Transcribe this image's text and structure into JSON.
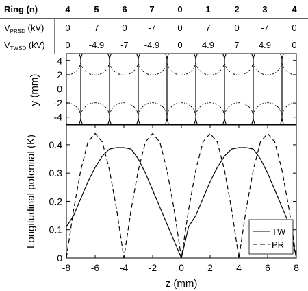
{
  "table": {
    "header_label": "Ring (n)",
    "rings": [
      "4",
      "5",
      "6",
      "7",
      "0",
      "1",
      "2",
      "3",
      "4"
    ],
    "rows": [
      {
        "label_main": "V",
        "label_sub": "PRSD",
        "label_unit": " (kV)",
        "values": [
          "0",
          "7",
          "0",
          "-7",
          "0",
          "7",
          "0",
          "-7",
          "0"
        ]
      },
      {
        "label_main": "V",
        "label_sub": "TWSD",
        "label_unit": " (kV)",
        "values": [
          "0",
          "-4.9",
          "-7",
          "-4.9",
          "0",
          "4.9",
          "7",
          "4.9",
          "0"
        ]
      }
    ]
  },
  "chart_data": [
    {
      "type": "diagram",
      "xlabel": "",
      "ylabel": "y (mm)",
      "xlim": [
        -8,
        8
      ],
      "ylim": [
        -5,
        5
      ],
      "yticks": [
        "4",
        "2",
        "0",
        "-2",
        "-4"
      ],
      "ring_centers_z": [
        -8,
        -6,
        -4,
        -2,
        0,
        2,
        4,
        6,
        8
      ],
      "electrode_y": [
        4,
        -4
      ],
      "electrode_radius_mm": 1
    },
    {
      "type": "line",
      "xlabel": "z (mm)",
      "ylabel": "Longitudinal potential (K)",
      "xlim": [
        -8,
        8
      ],
      "ylim": [
        0,
        0.47
      ],
      "xticks": [
        "-8",
        "-6",
        "-4",
        "-2",
        "0",
        "2",
        "4",
        "6",
        "8"
      ],
      "yticks": [
        "0.4",
        "0.3",
        "0.2",
        "0.1",
        "0"
      ],
      "legend": "bottom-right",
      "series": [
        {
          "name": "TW",
          "style": "solid",
          "x": [
            -8,
            -7.5,
            -7,
            -6.5,
            -6,
            -5.5,
            -5,
            -4.5,
            -4,
            -3.5,
            -3,
            -2.5,
            -2,
            -1.5,
            -1,
            -0.5,
            0,
            0.5,
            1,
            1.5,
            2,
            2.5,
            3,
            3.5,
            4,
            4.5,
            5,
            5.5,
            6,
            6.5,
            7,
            7.5,
            8
          ],
          "y": [
            0.11,
            0.15,
            0.21,
            0.27,
            0.32,
            0.36,
            0.385,
            0.39,
            0.39,
            0.385,
            0.35,
            0.3,
            0.24,
            0.18,
            0.12,
            0.06,
            0.0,
            0.11,
            0.15,
            0.21,
            0.27,
            0.32,
            0.36,
            0.385,
            0.39,
            0.39,
            0.385,
            0.35,
            0.3,
            0.24,
            0.18,
            0.12,
            0.0
          ]
        },
        {
          "name": "PR",
          "style": "dashed",
          "x": [
            -8,
            -7.5,
            -7,
            -6.5,
            -6,
            -5.5,
            -5,
            -4.5,
            -4,
            -3.5,
            -3,
            -2.5,
            -2,
            -1.5,
            -1,
            -0.5,
            0,
            0.5,
            1,
            1.5,
            2,
            2.5,
            3,
            3.5,
            4,
            4.5,
            5,
            5.5,
            6,
            6.5,
            7,
            7.5,
            8
          ],
          "y": [
            0.0,
            0.17,
            0.31,
            0.41,
            0.44,
            0.41,
            0.31,
            0.17,
            0.0,
            0.17,
            0.31,
            0.41,
            0.44,
            0.41,
            0.31,
            0.17,
            0.0,
            0.17,
            0.31,
            0.41,
            0.44,
            0.41,
            0.31,
            0.17,
            0.0,
            0.17,
            0.31,
            0.41,
            0.44,
            0.41,
            0.31,
            0.17,
            0.0
          ]
        }
      ]
    }
  ]
}
